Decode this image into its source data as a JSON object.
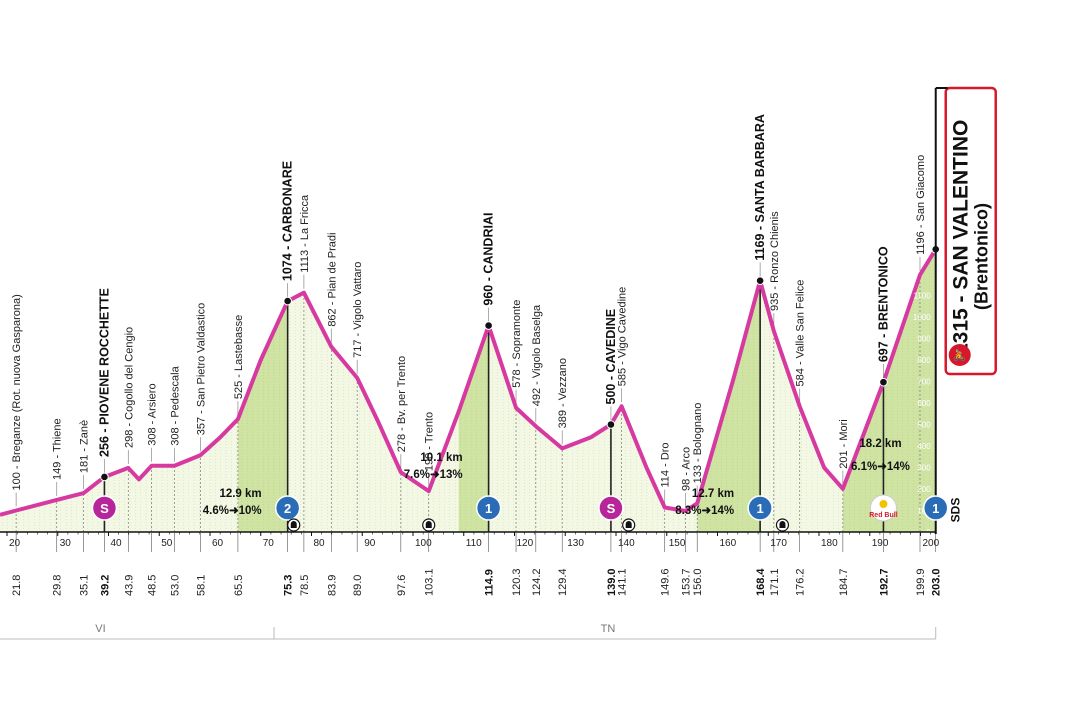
{
  "chart_data": {
    "type": "area",
    "title": "",
    "colors": {
      "profile_line": "#d63aa0",
      "fill_light": "#f3f8e4",
      "fill_climb": "#cfe4a3",
      "gpm": "#2a6db6",
      "sprint": "#b6269a",
      "finish": "#d7182a"
    },
    "xlim": [
      17,
      205
    ],
    "ylim": [
      0,
      1400
    ],
    "points": [
      {
        "km": 17,
        "alt": 80
      },
      {
        "km": 21.8,
        "alt": 100
      },
      {
        "km": 29.8,
        "alt": 149
      },
      {
        "km": 35.1,
        "alt": 181
      },
      {
        "km": 39.2,
        "alt": 256
      },
      {
        "km": 43.9,
        "alt": 298
      },
      {
        "km": 46,
        "alt": 245
      },
      {
        "km": 48.5,
        "alt": 308
      },
      {
        "km": 53.0,
        "alt": 308
      },
      {
        "km": 58.1,
        "alt": 357
      },
      {
        "km": 62,
        "alt": 440
      },
      {
        "km": 65.5,
        "alt": 525
      },
      {
        "km": 70,
        "alt": 800
      },
      {
        "km": 75.3,
        "alt": 1074
      },
      {
        "km": 78.5,
        "alt": 1113
      },
      {
        "km": 83.9,
        "alt": 862
      },
      {
        "km": 89.0,
        "alt": 717
      },
      {
        "km": 93,
        "alt": 520
      },
      {
        "km": 97.6,
        "alt": 278
      },
      {
        "km": 103.1,
        "alt": 190
      },
      {
        "km": 109,
        "alt": 560
      },
      {
        "km": 114.9,
        "alt": 960
      },
      {
        "km": 120.3,
        "alt": 578
      },
      {
        "km": 124.2,
        "alt": 492
      },
      {
        "km": 129.4,
        "alt": 389
      },
      {
        "km": 135,
        "alt": 440
      },
      {
        "km": 139.0,
        "alt": 500
      },
      {
        "km": 141.1,
        "alt": 585
      },
      {
        "km": 146,
        "alt": 300
      },
      {
        "km": 149.6,
        "alt": 114
      },
      {
        "km": 153.7,
        "alt": 98
      },
      {
        "km": 156.0,
        "alt": 133
      },
      {
        "km": 163,
        "alt": 700
      },
      {
        "km": 168.4,
        "alt": 1169
      },
      {
        "km": 171.1,
        "alt": 935
      },
      {
        "km": 176.2,
        "alt": 584
      },
      {
        "km": 181,
        "alt": 300
      },
      {
        "km": 184.7,
        "alt": 201
      },
      {
        "km": 192.7,
        "alt": 697
      },
      {
        "km": 199.9,
        "alt": 1196
      },
      {
        "km": 203.0,
        "alt": 1315
      }
    ],
    "climb_zones": [
      [
        65.5,
        75.3
      ],
      [
        109,
        114.9
      ],
      [
        156.0,
        168.4
      ],
      [
        184.7,
        203.0
      ]
    ],
    "waypoints": [
      {
        "km": 21.8,
        "label": "100 - Breganze (Rot. nuova Gasparona)",
        "bold": false
      },
      {
        "km": 29.8,
        "label": "149 - Thiene",
        "bold": false
      },
      {
        "km": 35.1,
        "label": "181 - Zanè",
        "bold": false
      },
      {
        "km": 39.2,
        "label": "256 - PIOVENE ROCCHETTE",
        "bold": true
      },
      {
        "km": 43.9,
        "label": "298 - Cogollo del Cengio",
        "bold": false
      },
      {
        "km": 48.5,
        "label": "308 - Arsiero",
        "bold": false
      },
      {
        "km": 53.0,
        "label": "308 - Pedescala",
        "bold": false
      },
      {
        "km": 58.1,
        "label": "357 - San Pietro Valdastico",
        "bold": false
      },
      {
        "km": 65.5,
        "label": "525 - Lastebasse",
        "bold": false
      },
      {
        "km": 75.3,
        "label": "1074 - CARBONARE",
        "bold": true
      },
      {
        "km": 78.5,
        "label": "1113 - La Fricca",
        "bold": false
      },
      {
        "km": 83.9,
        "label": "862 - Pian de Pradi",
        "bold": false
      },
      {
        "km": 89.0,
        "label": "717 - Vigolo Vattaro",
        "bold": false
      },
      {
        "km": 97.6,
        "label": "278 - Bv. per Trento",
        "bold": false
      },
      {
        "km": 103.1,
        "label": "190 - Trento",
        "bold": false
      },
      {
        "km": 114.9,
        "label": "960 - CANDRIAI",
        "bold": true
      },
      {
        "km": 120.3,
        "label": "578 - Sopramonte",
        "bold": false
      },
      {
        "km": 124.2,
        "label": "492 - Vigolo Baselga",
        "bold": false
      },
      {
        "km": 129.4,
        "label": "389 - Vezzano",
        "bold": false
      },
      {
        "km": 139.0,
        "label": "500 - CAVEDINE",
        "bold": true
      },
      {
        "km": 141.1,
        "label": "585 - Vigo Cavedine",
        "bold": false
      },
      {
        "km": 149.6,
        "label": "114 - Dro",
        "bold": false
      },
      {
        "km": 153.7,
        "label": "98 - Arco",
        "bold": false
      },
      {
        "km": 156.0,
        "label": "133 - Bolognano",
        "bold": false
      },
      {
        "km": 168.4,
        "label": "1169 - SANTA BARBARA",
        "bold": true
      },
      {
        "km": 171.1,
        "label": "935 - Ronzo Chienis",
        "bold": false
      },
      {
        "km": 176.2,
        "label": "584 - Valle San Felice",
        "bold": false
      },
      {
        "km": 184.7,
        "label": "201 - Mori",
        "bold": false
      },
      {
        "km": 192.7,
        "label": "697 - BRENTONICO",
        "bold": true
      },
      {
        "km": 199.9,
        "label": "1196 - San Giacomo",
        "bold": false
      }
    ],
    "finish": {
      "km": 203.0,
      "label": "1315 - SAN VALENTINO",
      "sub": "(Brentonico)"
    },
    "km_labels": [
      {
        "km": 21.8,
        "text": "21.8",
        "bold": false
      },
      {
        "km": 29.8,
        "text": "29.8",
        "bold": false
      },
      {
        "km": 35.1,
        "text": "35.1",
        "bold": false
      },
      {
        "km": 39.2,
        "text": "39.2",
        "bold": true
      },
      {
        "km": 43.9,
        "text": "43.9",
        "bold": false
      },
      {
        "km": 48.5,
        "text": "48.5",
        "bold": false
      },
      {
        "km": 53.0,
        "text": "53.0",
        "bold": false
      },
      {
        "km": 58.1,
        "text": "58.1",
        "bold": false
      },
      {
        "km": 65.5,
        "text": "65.5",
        "bold": false
      },
      {
        "km": 75.3,
        "text": "75.3",
        "bold": true
      },
      {
        "km": 78.5,
        "text": "78.5",
        "bold": false
      },
      {
        "km": 83.9,
        "text": "83.9",
        "bold": false
      },
      {
        "km": 89.0,
        "text": "89.0",
        "bold": false
      },
      {
        "km": 97.6,
        "text": "97.6",
        "bold": false
      },
      {
        "km": 103.1,
        "text": "103.1",
        "bold": false
      },
      {
        "km": 114.9,
        "text": "114.9",
        "bold": true
      },
      {
        "km": 120.3,
        "text": "120.3",
        "bold": false
      },
      {
        "km": 124.2,
        "text": "124.2",
        "bold": false
      },
      {
        "km": 129.4,
        "text": "129.4",
        "bold": false
      },
      {
        "km": 139.0,
        "text": "139.0",
        "bold": true
      },
      {
        "km": 141.1,
        "text": "141.1",
        "bold": false
      },
      {
        "km": 149.6,
        "text": "149.6",
        "bold": false
      },
      {
        "km": 153.7,
        "text": "153.7",
        "bold": false
      },
      {
        "km": 156.0,
        "text": "156.0",
        "bold": false
      },
      {
        "km": 168.4,
        "text": "168.4",
        "bold": true
      },
      {
        "km": 171.1,
        "text": "171.1",
        "bold": false
      },
      {
        "km": 176.2,
        "text": "176.2",
        "bold": false
      },
      {
        "km": 184.7,
        "text": "184.7",
        "bold": false
      },
      {
        "km": 192.7,
        "text": "192.7",
        "bold": true
      },
      {
        "km": 199.9,
        "text": "199.9",
        "bold": false
      },
      {
        "km": 203.0,
        "text": "203.0",
        "bold": true
      }
    ],
    "x_ticks": [
      20,
      30,
      40,
      50,
      60,
      70,
      80,
      90,
      100,
      110,
      120,
      130,
      140,
      150,
      160,
      170,
      180,
      190,
      200
    ],
    "altitude_scale": [
      "1100",
      "1000",
      "900",
      "800",
      "700",
      "600",
      "500",
      "400",
      "300",
      "200",
      "100",
      "0"
    ],
    "climbs": [
      {
        "km": 75.3,
        "length": "12.9 km",
        "grade": "4.6%➜10%",
        "gpm": "2"
      },
      {
        "km": 114.9,
        "length": "10.1 km",
        "grade": "7.6%➜13%",
        "gpm": "1"
      },
      {
        "km": 168.4,
        "length": "12.7 km",
        "grade": "8.3%➜14%",
        "gpm": "1"
      },
      {
        "km": 192.7,
        "length": "18.2 km",
        "grade": "6.1%➜14%",
        "gpm": ""
      }
    ],
    "gpm_markers": [
      {
        "km": 75.3,
        "text": "2"
      },
      {
        "km": 114.9,
        "text": "1"
      },
      {
        "km": 168.4,
        "text": "1"
      },
      {
        "km": 203.0,
        "text": "1"
      }
    ],
    "sprints": [
      {
        "km": 39.2,
        "text": "S"
      },
      {
        "km": 139.0,
        "text": "S"
      }
    ],
    "bonus_logo": {
      "km": 192.7,
      "text": "Red Bull"
    },
    "tunnels": [
      76.5,
      103.1,
      142.5,
      172.8
    ],
    "sds": "SDS",
    "regions": [
      {
        "from": 0,
        "to": 25,
        "text": "VI"
      },
      {
        "from": 25,
        "to": 203,
        "text": "TN"
      }
    ],
    "region_mark_x": [
      25
    ],
    "region_label_km": [
      {
        "km": 40,
        "text": "VI"
      },
      {
        "km": 140,
        "text": "TN"
      }
    ]
  }
}
